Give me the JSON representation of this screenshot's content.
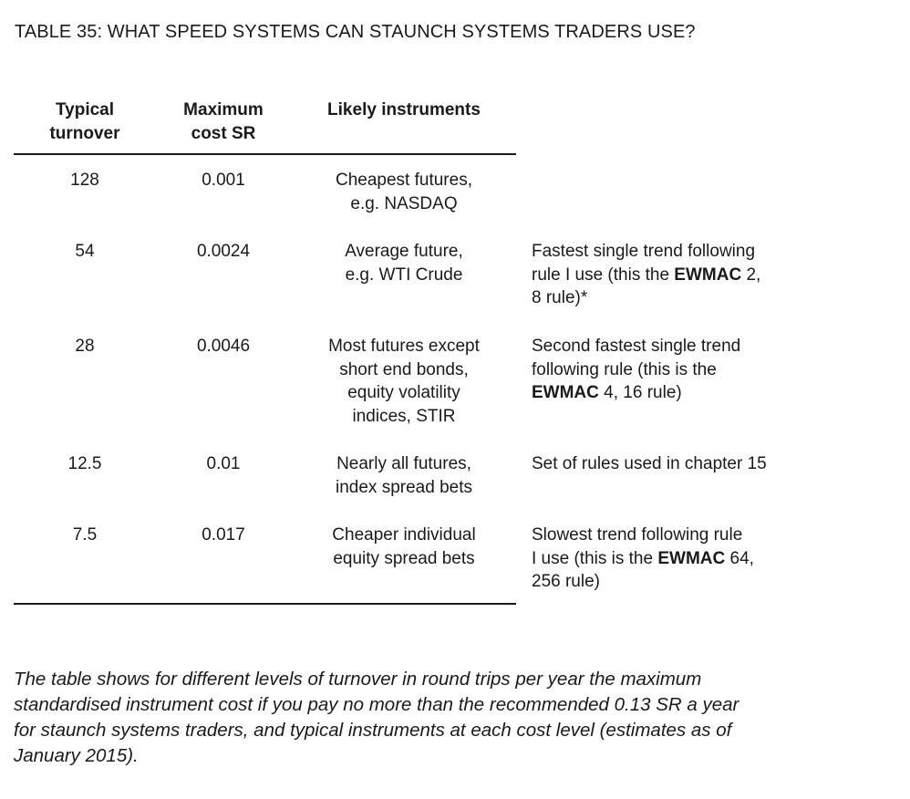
{
  "title": "TABLE 35: WHAT SPEED SYSTEMS CAN STAUNCH SYSTEMS TRADERS USE?",
  "headers": {
    "turnover": "Typical\nturnover",
    "cost": "Maximum\ncost SR",
    "instruments": "Likely instruments"
  },
  "rows": [
    {
      "turnover": "128",
      "cost": "0.001",
      "instruments": "Cheapest futures,\ne.g. NASDAQ",
      "note": []
    },
    {
      "turnover": "54",
      "cost": "0.0024",
      "instruments": "Average future,\ne.g. WTI Crude",
      "note": [
        [
          {
            "t": "Fastest single trend following"
          }
        ],
        [
          {
            "t": "rule I use (this the "
          },
          {
            "t": "EWMAC",
            "b": true
          },
          {
            "t": " 2,"
          }
        ],
        [
          {
            "t": "8 rule)*"
          }
        ]
      ]
    },
    {
      "turnover": "28",
      "cost": "0.0046",
      "instruments": "Most futures except\nshort end bonds,\nequity volatility\nindices, STIR",
      "note": [
        [
          {
            "t": "Second fastest single trend"
          }
        ],
        [
          {
            "t": "following rule (this is the"
          }
        ],
        [
          {
            "t": "EWMAC",
            "b": true
          },
          {
            "t": " 4, 16 rule)"
          }
        ]
      ]
    },
    {
      "turnover": "12.5",
      "cost": "0.01",
      "instruments": "Nearly all futures,\nindex spread bets",
      "note": [
        [
          {
            "t": "Set of rules used in chapter 15"
          }
        ]
      ]
    },
    {
      "turnover": "7.5",
      "cost": "0.017",
      "instruments": "Cheaper individual\nequity spread bets",
      "note": [
        [
          {
            "t": "Slowest trend following rule"
          }
        ],
        [
          {
            "t": "I use (this is the "
          },
          {
            "t": "EWMAC",
            "b": true
          },
          {
            "t": " 64,"
          }
        ],
        [
          {
            "t": "256 rule)"
          }
        ]
      ]
    }
  ],
  "caption": [
    "The table shows for different levels of turnover in round trips per year the maximum",
    "standardised instrument cost if you pay no more than the recommended 0.13 SR a year",
    "for staunch systems traders, and typical instruments at each cost level (estimates as of",
    "January 2015)."
  ]
}
